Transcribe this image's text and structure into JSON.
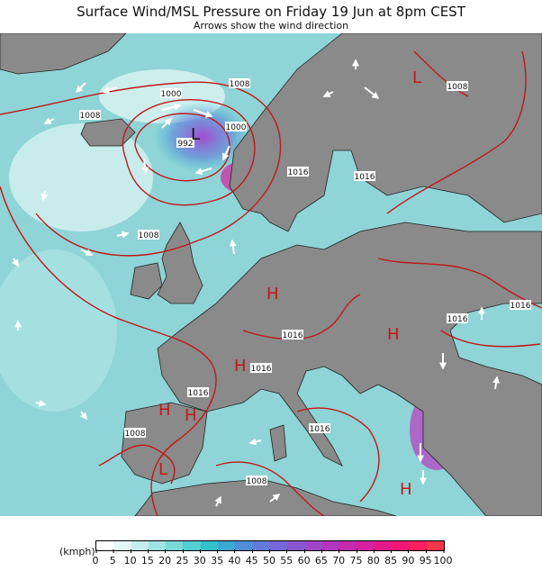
{
  "title": "Surface Wind/MSL Pressure on Friday 19 Jun at 8pm CEST",
  "subtitle": "Arrows show the wind direction",
  "map": {
    "pressure_labels": [
      "1000",
      "1008",
      "1008",
      "1008",
      "992",
      "1000",
      "1016",
      "1016",
      "1008",
      "1016",
      "1016",
      "1016",
      "1016",
      "1016",
      "1016",
      "1008",
      "1008"
    ],
    "pressure_systems": [
      "L",
      "L",
      "H",
      "H",
      "H",
      "H",
      "H",
      "H",
      "L"
    ]
  },
  "legend": {
    "unit_label": "(kmph)",
    "ticks": [
      "0",
      "5",
      "10",
      "15",
      "20",
      "25",
      "30",
      "35",
      "40",
      "45",
      "50",
      "55",
      "60",
      "65",
      "70",
      "75",
      "80",
      "85",
      "90",
      "95",
      "100"
    ],
    "colors": [
      "#ffffff",
      "#e6f7f7",
      "#c4eeee",
      "#9fe4e4",
      "#79d9d9",
      "#52cfd2",
      "#33c2cc",
      "#3aa9d4",
      "#4f8fd8",
      "#6379dc",
      "#7766d8",
      "#8b55d1",
      "#9f45c8",
      "#b236bd",
      "#c52aaf",
      "#d6209e",
      "#e4198b",
      "#ef1975",
      "#f5215f",
      "#f6354a"
    ]
  },
  "colors": {
    "sea": "#8fd4d6",
    "land": "#8a8a8a",
    "isobar": "#c01818",
    "arrow": "#ffffff"
  }
}
